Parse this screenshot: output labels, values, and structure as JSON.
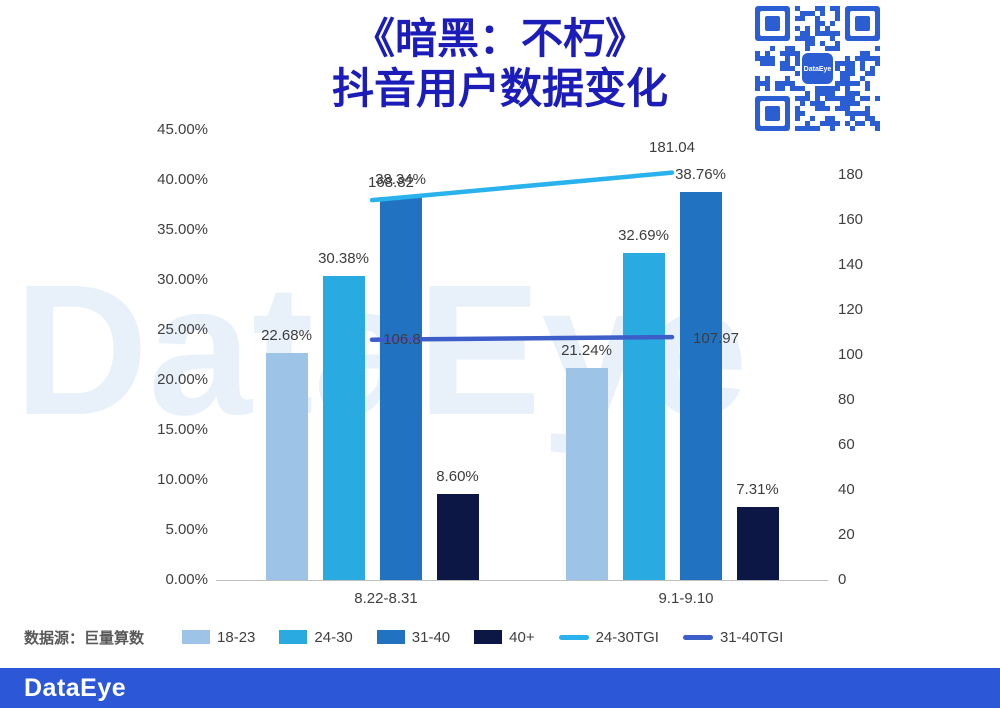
{
  "title": {
    "line1": "《暗黑：不朽》",
    "line2": "抖音用户数据变化"
  },
  "watermark_text": "DataEye",
  "source_label": "数据源：巨量算数",
  "footer": {
    "logo_text": "DataEye"
  },
  "qr": {
    "logo_text": "DataEye"
  },
  "chart_data": {
    "type": "bar",
    "title": "《暗黑：不朽》抖音用户数据变化",
    "categories": [
      "8.22-8.31",
      "9.1-9.10"
    ],
    "series": [
      {
        "name": "18-23",
        "color": "#9dc3e6",
        "values": [
          22.68,
          21.24
        ],
        "value_labels": [
          "22.68%",
          "21.24%"
        ]
      },
      {
        "name": "24-30",
        "color": "#29abe2",
        "values": [
          30.38,
          32.69
        ],
        "value_labels": [
          "30.38%",
          "32.69%"
        ]
      },
      {
        "name": "31-40",
        "color": "#2173c2",
        "values": [
          38.34,
          38.76
        ],
        "value_labels": [
          "38.34%",
          "38.76%"
        ]
      },
      {
        "name": "40+",
        "color": "#0d1746",
        "values": [
          8.6,
          7.31
        ],
        "value_labels": [
          "8.60%",
          "7.31%"
        ]
      }
    ],
    "line_series": [
      {
        "name": "24-30TGI",
        "color": "#29b2ec",
        "values": [
          168.82,
          181.04
        ],
        "value_labels": [
          "168.82",
          "181.04"
        ]
      },
      {
        "name": "31-40TGI",
        "color": "#3d5ec9",
        "values": [
          106.8,
          107.97
        ],
        "value_labels": [
          "106.8",
          "107.97"
        ]
      }
    ],
    "left_axis": {
      "min": 0,
      "max": 45,
      "tick_step": 5,
      "tick_labels": [
        "0.00%",
        "5.00%",
        "10.00%",
        "15.00%",
        "20.00%",
        "25.00%",
        "30.00%",
        "35.00%",
        "40.00%",
        "45.00%"
      ]
    },
    "right_axis": {
      "min": 0,
      "max": 200,
      "tick_step": 20,
      "tick_labels": [
        "0",
        "20",
        "40",
        "60",
        "80",
        "100",
        "120",
        "140",
        "160",
        "180"
      ]
    },
    "legend_position": "bottom",
    "grid": false
  }
}
